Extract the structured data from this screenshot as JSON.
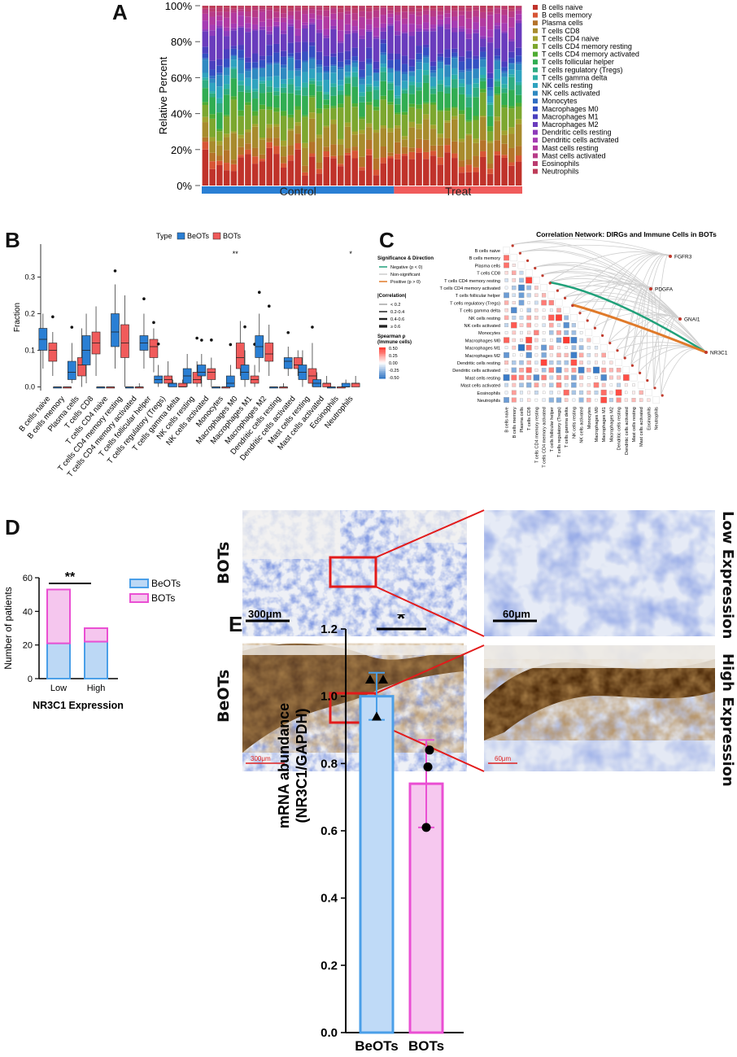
{
  "panels": {
    "a": "A",
    "b": "B",
    "c": "C",
    "d": "D",
    "e": "E"
  },
  "chart_data": [
    {
      "panel": "A",
      "type": "bar",
      "stacked": true,
      "ylabel": "Relative Percent",
      "yticks": [
        "0%",
        "20%",
        "40%",
        "60%",
        "80%",
        "100%"
      ],
      "groups": [
        {
          "name": "Control",
          "count": 27,
          "color": "#2a7fd4"
        },
        {
          "name": "Treat",
          "count": 18,
          "color": "#f05b5b"
        }
      ],
      "legend": [
        "B cells naive",
        "B cells memory",
        "Plasma cells",
        "T cells CD8",
        "T cells CD4 naive",
        "T cells CD4 memory resting",
        "T cells CD4 memory activated",
        "T cells follicular helper",
        "T cells regulatory (Tregs)",
        "T cells gamma delta",
        "NK cells resting",
        "NK cells activated",
        "Monocytes",
        "Macrophages M0",
        "Macrophages M1",
        "Macrophages M2",
        "Dendritic cells resting",
        "Dendritic cells activated",
        "Mast cells resting",
        "Mast cells activated",
        "Eosinophils",
        "Neutrophils"
      ],
      "colors": [
        "#c0332b",
        "#d75535",
        "#b5732a",
        "#a88b2d",
        "#a2a22f",
        "#7ca72f",
        "#4fac33",
        "#31ad52",
        "#2fac80",
        "#2eb0a6",
        "#2fa3bf",
        "#2f89c1",
        "#2f6dc3",
        "#3550c2",
        "#4a3fbe",
        "#6a3cbd",
        "#8d3bba",
        "#a53bb3",
        "#b23aa0",
        "#b73b87",
        "#bb3c6f",
        "#be3c58"
      ]
    },
    {
      "panel": "B",
      "type": "box",
      "legend_title": "Type",
      "series": [
        {
          "name": "BeOTs",
          "color": "#2a7fd4"
        },
        {
          "name": "BOTs",
          "color": "#f05b5b"
        }
      ],
      "ylabel": "Fraction",
      "yticks": [
        0.0,
        0.1,
        0.2,
        0.3
      ],
      "ylim": [
        -0.01,
        0.39
      ],
      "categories": [
        "B cells naive",
        "B cells memory",
        "Plasma cells",
        "T cells CD8",
        "T cells CD4 naive",
        "T cells CD4 memory resting",
        "T cells CD4 memory activated",
        "T cells follicular helper",
        "T cells regulatory (Tregs)",
        "T cells gamma delta",
        "NK cells resting",
        "NK cells activated",
        "Monocytes",
        "Macrophages M0",
        "Macrophages M1",
        "Macrophages M2",
        "Dendritic cells resting",
        "Dendritic cells activated",
        "Mast cells resting",
        "Mast cells activated",
        "Eosinophils",
        "Neutrophils"
      ],
      "significance": [
        "",
        "",
        "",
        "",
        "",
        "",
        "",
        "",
        "",
        "",
        "",
        "",
        "",
        "**",
        "",
        "",
        "",
        "",
        "",
        "",
        "",
        "*"
      ],
      "stats": [
        [
          [
            0.05,
            0.1,
            0.13,
            0.16,
            0.2
          ],
          [
            0.03,
            0.07,
            0.1,
            0.12,
            0.15
          ]
        ],
        [
          [
            0,
            0,
            0,
            0,
            0
          ],
          [
            0,
            0,
            0,
            0,
            0
          ]
        ],
        [
          [
            0.01,
            0.02,
            0.04,
            0.07,
            0.12
          ],
          [
            0.0,
            0.03,
            0.06,
            0.08,
            0.16
          ]
        ],
        [
          [
            0.01,
            0.06,
            0.1,
            0.14,
            0.2
          ],
          [
            0.03,
            0.09,
            0.12,
            0.15,
            0.22
          ]
        ],
        [
          [
            0,
            0,
            0,
            0,
            0
          ],
          [
            0,
            0,
            0,
            0,
            0
          ]
        ],
        [
          [
            0.05,
            0.11,
            0.15,
            0.2,
            0.28
          ],
          [
            0.0,
            0.08,
            0.12,
            0.17,
            0.25
          ]
        ],
        [
          [
            0,
            0,
            0,
            0,
            0
          ],
          [
            0,
            0,
            0,
            0,
            0.01
          ]
        ],
        [
          [
            0.05,
            0.1,
            0.12,
            0.14,
            0.2
          ],
          [
            0.04,
            0.08,
            0.11,
            0.13,
            0.16
          ]
        ],
        [
          [
            0.0,
            0.01,
            0.02,
            0.03,
            0.06
          ],
          [
            0.0,
            0.01,
            0.02,
            0.03,
            0.07
          ]
        ],
        [
          [
            0.0,
            0.0,
            0.01,
            0.01,
            0.02
          ],
          [
            0.0,
            0.0,
            0.0,
            0.01,
            0.02
          ]
        ],
        [
          [
            0.0,
            0.01,
            0.03,
            0.05,
            0.09
          ],
          [
            0.0,
            0.01,
            0.02,
            0.04,
            0.07
          ]
        ],
        [
          [
            0.0,
            0.03,
            0.04,
            0.06,
            0.09
          ],
          [
            0.0,
            0.02,
            0.04,
            0.05,
            0.08
          ]
        ],
        [
          [
            0,
            0,
            0,
            0,
            0
          ],
          [
            0,
            0,
            0,
            0,
            0
          ]
        ],
        [
          [
            0.0,
            0.0,
            0.01,
            0.03,
            0.06
          ],
          [
            0.03,
            0.05,
            0.08,
            0.12,
            0.18
          ]
        ],
        [
          [
            0.0,
            0.02,
            0.04,
            0.06,
            0.1
          ],
          [
            0.0,
            0.01,
            0.02,
            0.03,
            0.06
          ]
        ],
        [
          [
            0.04,
            0.08,
            0.11,
            0.14,
            0.2
          ],
          [
            0.03,
            0.07,
            0.09,
            0.12,
            0.17
          ]
        ],
        [
          [
            0,
            0,
            0,
            0,
            0
          ],
          [
            0,
            0,
            0,
            0,
            0.01
          ]
        ],
        [
          [
            0.03,
            0.05,
            0.07,
            0.08,
            0.11
          ],
          [
            0.03,
            0.05,
            0.06,
            0.08,
            0.1
          ]
        ],
        [
          [
            0.0,
            0.02,
            0.04,
            0.06,
            0.1
          ],
          [
            0.0,
            0.01,
            0.03,
            0.05,
            0.12
          ]
        ],
        [
          [
            0.0,
            0.0,
            0.01,
            0.02,
            0.04
          ],
          [
            0.0,
            0.0,
            0.01,
            0.01,
            0.03
          ]
        ],
        [
          [
            0,
            0,
            0,
            0,
            0
          ],
          [
            0,
            0,
            0,
            0,
            0
          ]
        ],
        [
          [
            0.0,
            0.0,
            0.0,
            0.01,
            0.02
          ],
          [
            0.0,
            0.0,
            0.01,
            0.01,
            0.03
          ]
        ]
      ]
    },
    {
      "panel": "C",
      "type": "heatmap",
      "title": "Correlation Network: DIRGs and Immune Cells in BOTs",
      "rows": [
        "B cells naive",
        "B cells memory",
        "Plasma cells",
        "T cells CD8",
        "T cells CD4 memory resting",
        "T cells CD4 memory activated",
        "T cells follicular helper",
        "T cells regulatory (Tregs)",
        "T cells gamma delta",
        "NK cells resting",
        "NK cells activated",
        "Monocytes",
        "Macrophages M0",
        "Macrophages M1",
        "Macrophages M2",
        "Dendritic cells resting",
        "Dendritic cells activated",
        "Mast cells resting",
        "Mast cells activated",
        "Eosinophils",
        "Neutrophils"
      ],
      "genes": [
        "FGFR3",
        "PDGFA",
        "GNAI1",
        "NR3C1"
      ],
      "legend": {
        "sig_title": "Significance & Direction",
        "sig_items": [
          {
            "label": "Negative (p < 0)",
            "color": "#21a17a"
          },
          {
            "label": "Non-significant",
            "color": "#cccccc"
          },
          {
            "label": "Positive (p > 0)",
            "color": "#e07a2a"
          }
        ],
        "corr_title": "|Correlation|",
        "corr_items": [
          "< 0.2",
          "0.2-0.4",
          "0.4-0.6",
          "≥ 0.6"
        ],
        "scale_title": "Spearman ρ\n(Immune cells)",
        "scale_title_1": "Spearman ρ",
        "scale_title_2": "(Immune cells)",
        "scale_ticks": [
          "0.50",
          "0.25",
          "0.00",
          "-0.25",
          "-0.50"
        ]
      }
    },
    {
      "panel": "D",
      "type": "bar",
      "stacked": true,
      "categories": [
        "Low",
        "High"
      ],
      "series": [
        {
          "name": "BeOTs",
          "values": [
            21,
            22
          ],
          "color": "#4a9fe8",
          "fill": "#bcd8f5"
        },
        {
          "name": "BOTs",
          "values": [
            32,
            8
          ],
          "color": "#ea4fd3",
          "fill": "#f5c6ee"
        }
      ],
      "ylabel": "Number of patients",
      "xlabel": "NR3C1 Expression",
      "yticks": [
        0,
        20,
        40,
        60
      ],
      "ylim": [
        0,
        60
      ],
      "significance": "**"
    },
    {
      "panel": "E",
      "type": "bar",
      "categories": [
        "BeOTs",
        "BOTs"
      ],
      "values": [
        1.0,
        0.74
      ],
      "errors": [
        0.07,
        0.13
      ],
      "points": [
        [
          1.05,
          1.05,
          0.94
        ],
        [
          0.84,
          0.79,
          0.61
        ]
      ],
      "ylabel": "mRNA abundance\n(NR3C1/GAPDH)",
      "ylabel_1": "mRNA abundance",
      "ylabel_2": "(NR3C1/GAPDH)",
      "yticks": [
        "0.0",
        "0.2",
        "0.4",
        "0.6",
        "0.8",
        "1.0",
        "1.2"
      ],
      "ylim": [
        0,
        1.2
      ],
      "significance": "*"
    }
  ],
  "ihc": {
    "row_labels": [
      "BOTs",
      "BeOTs"
    ],
    "side_labels": [
      "Low Expression",
      "High Expression"
    ],
    "scale_low": "300μm",
    "scale_high": "60μm"
  }
}
